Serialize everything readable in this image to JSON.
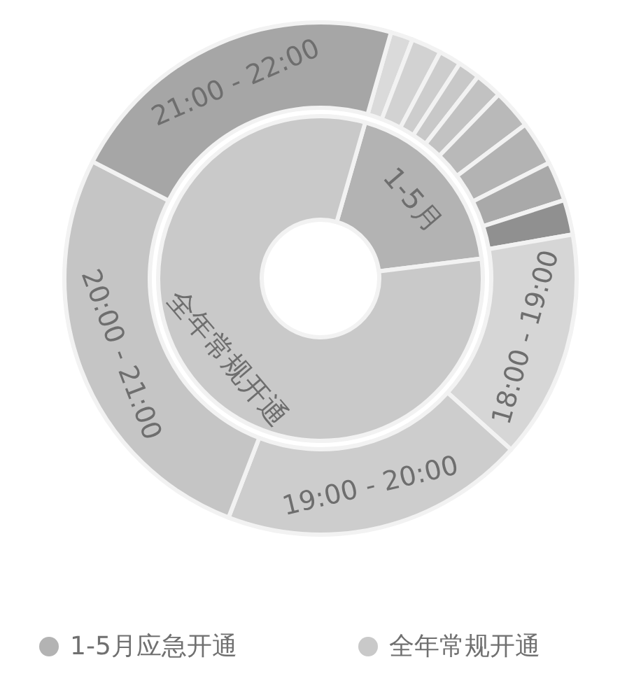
{
  "chart_data": [
    {
      "type": "donut",
      "categories": [
        "1-5月应急开通",
        "全年常规开通"
      ],
      "values": [
        18.6,
        81.4
      ],
      "colors": [
        "#b3b3b3",
        "#c9c9c9"
      ],
      "legend": "bottom",
      "annotations": [
        {
          "text": "1-5月",
          "x": "1-5月应急开通"
        },
        {
          "text": "全年常规开通",
          "x": "全年常规开通"
        }
      ]
    },
    {
      "type": "donut",
      "categories": [
        null,
        null,
        null,
        null,
        null,
        null,
        null,
        null,
        null,
        "18:00 - 19:00",
        "19:00 - 20:00",
        "20:00 - 21:00",
        "21:00 - 22:00"
      ],
      "values": [
        1.4,
        1.9,
        1.4,
        1.4,
        1.7,
        2.5,
        2.8,
        2.5,
        2.2,
        14.4,
        19.2,
        26.7,
        21.9
      ],
      "colors": [
        "#dadada",
        "#d2d2d2",
        "#cdcdcd",
        "#c8c8c8",
        "#c2c2c2",
        "#b9b9b9",
        "#b3b3b3",
        "#a9a9a9",
        "#909090",
        "#d6d6d6",
        "#cdcdcd",
        "#c5c5c5",
        "#a6a6a6"
      ]
    }
  ]
}
